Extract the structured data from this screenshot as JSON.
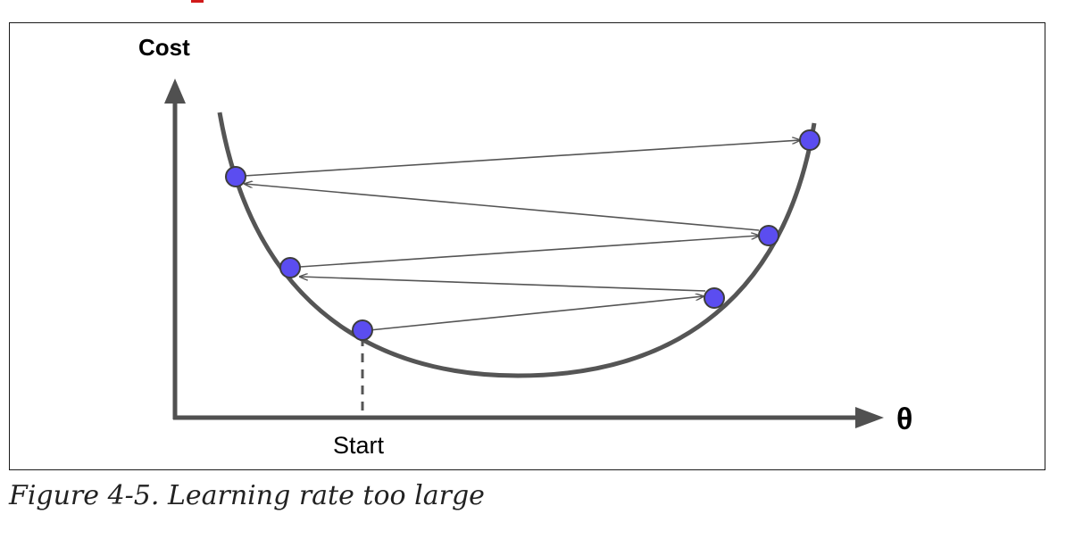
{
  "diagram": {
    "y_axis_label": "Cost",
    "x_axis_label": "θ",
    "start_label": "Start",
    "colors": {
      "axis": "#505050",
      "curve": "#555555",
      "arrow": "#555555",
      "point_fill": "#5b4df0",
      "point_stroke": "#3d3d3d"
    }
  },
  "caption": {
    "text": "Figure 4-5. Learning rate too large"
  }
}
